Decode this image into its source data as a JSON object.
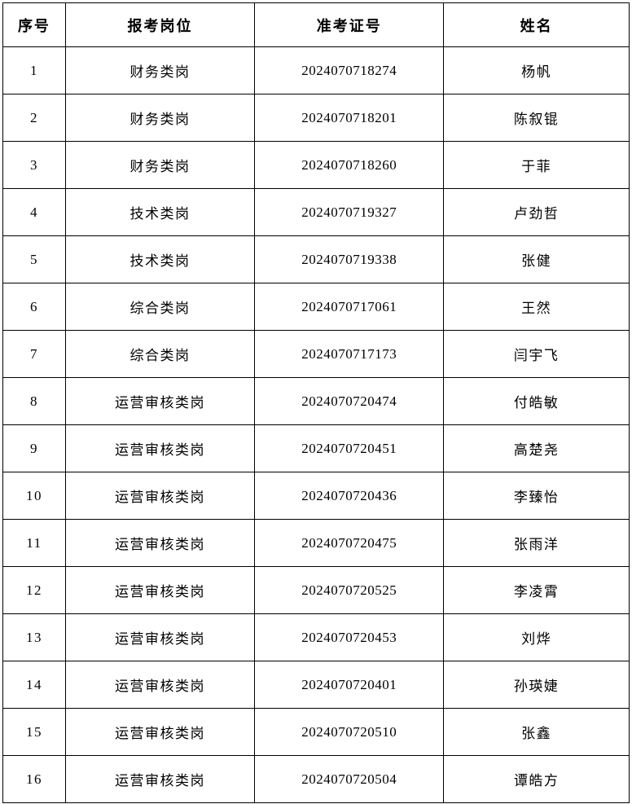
{
  "table": {
    "headers": [
      "序号",
      "报考岗位",
      "准考证号",
      "姓名"
    ],
    "rows": [
      [
        "1",
        "财务类岗",
        "2024070718274",
        "杨帆"
      ],
      [
        "2",
        "财务类岗",
        "2024070718201",
        "陈叙锟"
      ],
      [
        "3",
        "财务类岗",
        "2024070718260",
        "于菲"
      ],
      [
        "4",
        "技术类岗",
        "2024070719327",
        "卢劲哲"
      ],
      [
        "5",
        "技术类岗",
        "2024070719338",
        "张健"
      ],
      [
        "6",
        "综合类岗",
        "2024070717061",
        "王然"
      ],
      [
        "7",
        "综合类岗",
        "2024070717173",
        "闫宇飞"
      ],
      [
        "8",
        "运营审核类岗",
        "2024070720474",
        "付皓敏"
      ],
      [
        "9",
        "运营审核类岗",
        "2024070720451",
        "高楚尧"
      ],
      [
        "10",
        "运营审核类岗",
        "2024070720436",
        "李臻怡"
      ],
      [
        "11",
        "运营审核类岗",
        "2024070720475",
        "张雨洋"
      ],
      [
        "12",
        "运营审核类岗",
        "2024070720525",
        "李凌霄"
      ],
      [
        "13",
        "运营审核类岗",
        "2024070720453",
        "刘烨"
      ],
      [
        "14",
        "运营审核类岗",
        "2024070720401",
        "孙瑛婕"
      ],
      [
        "15",
        "运营审核类岗",
        "2024070720510",
        "张鑫"
      ],
      [
        "16",
        "运营审核类岗",
        "2024070720504",
        "谭皓方"
      ]
    ]
  },
  "colors": {
    "border": "#000000",
    "background": "#ffffff",
    "text": "#000000"
  }
}
